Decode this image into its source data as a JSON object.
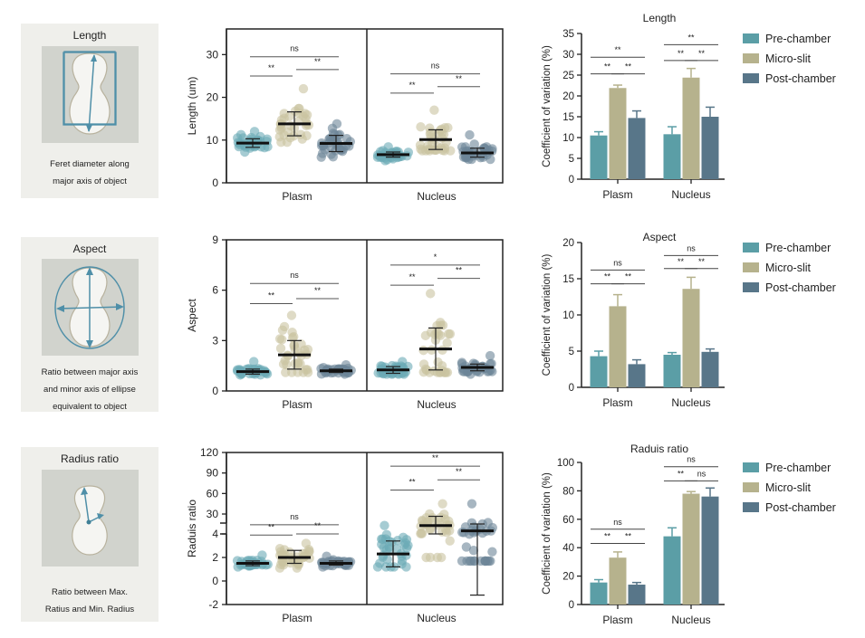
{
  "colors": {
    "pre_chamber": "#5b9ea6",
    "micro_slit": "#b6b28d",
    "post_chamber": "#587689",
    "dot_pre": "#6aaab5",
    "dot_micro": "#c9c3a0",
    "dot_post": "#6c8597"
  },
  "cards": [
    {
      "title": "Length",
      "desc": [
        "Feret diameter along",
        "major axis of object"
      ],
      "icon": "feret-diameter-icon"
    },
    {
      "title": "Aspect",
      "desc": [
        "Ratio between major axis",
        "and minor axis of ellipse",
        "equivalent to object"
      ],
      "icon": "ellipse-axes-icon"
    },
    {
      "title": "Radius ratio",
      "desc": [
        "Ratio between Max.",
        "Ratius and Min. Radius"
      ],
      "icon": "radius-ratio-icon"
    }
  ],
  "legend": [
    "Pre-chamber",
    "Micro-slit",
    "Post-chamber"
  ],
  "chart_data": [
    {
      "type": "scatter",
      "name": "length-scatter",
      "ylabel": "Length (um)",
      "ylim": [
        0,
        36
      ],
      "yticks": [
        0,
        10,
        20,
        30
      ],
      "categories": [
        "Plasm",
        "Nucleus"
      ],
      "groups": [
        "Pre-chamber",
        "Micro-slit",
        "Post-chamber"
      ],
      "series": [
        {
          "category": "Plasm",
          "group": "Pre-chamber",
          "mean": 9.3,
          "sd_low": 8.3,
          "sd_high": 10.3,
          "min": 7.2,
          "max": 12.0
        },
        {
          "category": "Plasm",
          "group": "Micro-slit",
          "mean": 13.8,
          "sd_low": 11.0,
          "sd_high": 16.6,
          "min": 9.5,
          "max": 22.0
        },
        {
          "category": "Plasm",
          "group": "Post-chamber",
          "mean": 9.2,
          "sd_low": 7.3,
          "sd_high": 11.1,
          "min": 6.0,
          "max": 13.8
        },
        {
          "category": "Nucleus",
          "group": "Pre-chamber",
          "mean": 6.6,
          "sd_low": 6.0,
          "sd_high": 7.2,
          "min": 5.2,
          "max": 8.4
        },
        {
          "category": "Nucleus",
          "group": "Micro-slit",
          "mean": 10.1,
          "sd_low": 7.8,
          "sd_high": 12.4,
          "min": 7.5,
          "max": 17.0
        },
        {
          "category": "Nucleus",
          "group": "Post-chamber",
          "mean": 7.0,
          "sd_low": 6.0,
          "sd_high": 8.1,
          "min": 5.5,
          "max": 11.2
        }
      ],
      "annotations": [
        {
          "category": "Plasm",
          "from": 0,
          "to": 2,
          "y": 29.5,
          "label": "ns"
        },
        {
          "category": "Plasm",
          "from": 0,
          "to": 1,
          "y": 25,
          "label": "**"
        },
        {
          "category": "Plasm",
          "from": 1,
          "to": 2,
          "y": 26.5,
          "label": "**"
        },
        {
          "category": "Nucleus",
          "from": 0,
          "to": 2,
          "y": 25.5,
          "label": "ns"
        },
        {
          "category": "Nucleus",
          "from": 0,
          "to": 1,
          "y": 21,
          "label": "**"
        },
        {
          "category": "Nucleus",
          "from": 1,
          "to": 2,
          "y": 22.5,
          "label": "**"
        }
      ]
    },
    {
      "type": "scatter",
      "name": "aspect-scatter",
      "ylabel": "Aspect",
      "ylim": [
        0,
        9
      ],
      "yticks": [
        0,
        3,
        6,
        9
      ],
      "categories": [
        "Plasm",
        "Nucleus"
      ],
      "groups": [
        "Pre-chamber",
        "Micro-slit",
        "Post-chamber"
      ],
      "series": [
        {
          "category": "Plasm",
          "group": "Pre-chamber",
          "mean": 1.15,
          "sd_low": 1.0,
          "sd_high": 1.3,
          "min": 0.95,
          "max": 1.75
        },
        {
          "category": "Plasm",
          "group": "Micro-slit",
          "mean": 2.15,
          "sd_low": 1.3,
          "sd_high": 3.0,
          "min": 1.1,
          "max": 4.5
        },
        {
          "category": "Plasm",
          "group": "Post-chamber",
          "mean": 1.2,
          "sd_low": 1.1,
          "sd_high": 1.3,
          "min": 1.0,
          "max": 1.55
        },
        {
          "category": "Nucleus",
          "group": "Pre-chamber",
          "mean": 1.25,
          "sd_low": 1.05,
          "sd_high": 1.45,
          "min": 1.0,
          "max": 1.75
        },
        {
          "category": "Nucleus",
          "group": "Micro-slit",
          "mean": 2.5,
          "sd_low": 1.25,
          "sd_high": 3.75,
          "min": 1.1,
          "max": 5.8
        },
        {
          "category": "Nucleus",
          "group": "Post-chamber",
          "mean": 1.4,
          "sd_low": 1.2,
          "sd_high": 1.6,
          "min": 1.0,
          "max": 2.1
        }
      ],
      "annotations": [
        {
          "category": "Plasm",
          "from": 0,
          "to": 2,
          "y": 6.4,
          "label": "ns"
        },
        {
          "category": "Plasm",
          "from": 0,
          "to": 1,
          "y": 5.2,
          "label": "**"
        },
        {
          "category": "Plasm",
          "from": 1,
          "to": 2,
          "y": 5.5,
          "label": "**"
        },
        {
          "category": "Nucleus",
          "from": 0,
          "to": 2,
          "y": 7.5,
          "label": "*"
        },
        {
          "category": "Nucleus",
          "from": 0,
          "to": 1,
          "y": 6.3,
          "label": "**"
        },
        {
          "category": "Nucleus",
          "from": 1,
          "to": 2,
          "y": 6.7,
          "label": "**"
        }
      ]
    },
    {
      "type": "scatter",
      "name": "radius-ratio-scatter",
      "ylabel": "Raduis ratio",
      "y_axis_break": true,
      "lower_ylim": [
        -2,
        4
      ],
      "upper_ylim": [
        0,
        120
      ],
      "yticks_lower": [
        -2,
        0,
        2,
        4
      ],
      "yticks_upper": [
        30,
        60,
        90,
        120
      ],
      "categories": [
        "Plasm",
        "Nucleus"
      ],
      "groups": [
        "Pre-chamber",
        "Micro-slit",
        "Post-chamber"
      ],
      "series": [
        {
          "category": "Plasm",
          "group": "Pre-chamber",
          "mean": 1.5,
          "sd_low": 1.3,
          "sd_high": 1.7,
          "min": 1.2,
          "max": 2.2
        },
        {
          "category": "Plasm",
          "group": "Micro-slit",
          "mean": 2.0,
          "sd_low": 1.5,
          "sd_high": 2.6,
          "min": 1.1,
          "max": 3.2
        },
        {
          "category": "Plasm",
          "group": "Post-chamber",
          "mean": 1.5,
          "sd_low": 1.35,
          "sd_high": 1.7,
          "min": 1.2,
          "max": 2.1
        },
        {
          "category": "Nucleus",
          "group": "Pre-chamber",
          "mean": 2.3,
          "sd_low": 1.2,
          "sd_high": 3.4,
          "min": 1.2,
          "max": 15
        },
        {
          "category": "Nucleus",
          "group": "Micro-slit",
          "mean": 15,
          "sd_low": 4,
          "sd_high": 27,
          "min": 2.0,
          "max": 45
        },
        {
          "category": "Nucleus",
          "group": "Post-chamber",
          "mean": 8,
          "sd_low": -1.2,
          "sd_high": 17,
          "min": 1.7,
          "max": 45
        }
      ],
      "annotations": [
        {
          "category": "Plasm",
          "from": 0,
          "to": 2,
          "y": 16,
          "label": "ns"
        },
        {
          "category": "Plasm",
          "from": 0,
          "to": 1,
          "y": 3.9,
          "label": "**"
        },
        {
          "category": "Plasm",
          "from": 1,
          "to": 2,
          "y": 4.0,
          "label": "**"
        },
        {
          "category": "Nucleus",
          "from": 0,
          "to": 2,
          "y": 100,
          "label": "**"
        },
        {
          "category": "Nucleus",
          "from": 0,
          "to": 1,
          "y": 65,
          "label": "**"
        },
        {
          "category": "Nucleus",
          "from": 1,
          "to": 2,
          "y": 80,
          "label": "**"
        }
      ]
    },
    {
      "type": "bar",
      "name": "length-cv-bar",
      "title": "Length",
      "ylabel": "Coefficient of variation (%)",
      "ylim": [
        0,
        35
      ],
      "yticks": [
        0,
        5,
        10,
        15,
        20,
        25,
        30,
        35
      ],
      "categories": [
        "Plasm",
        "Nucleus"
      ],
      "series": [
        {
          "name": "Pre-chamber",
          "values": [
            10.5,
            10.8
          ],
          "errors": [
            0.9,
            1.8
          ]
        },
        {
          "name": "Micro-slit",
          "values": [
            21.9,
            24.4
          ],
          "errors": [
            0.7,
            2.2
          ]
        },
        {
          "name": "Post-chamber",
          "values": [
            14.7,
            15.0
          ],
          "errors": [
            1.7,
            2.3
          ]
        }
      ],
      "annotations": [
        {
          "category": "Plasm",
          "from": 0,
          "to": 2,
          "y": 29.3,
          "label": "**"
        },
        {
          "category": "Plasm",
          "from": 0,
          "to": 1,
          "y": 25.3,
          "label": "**"
        },
        {
          "category": "Plasm",
          "from": 1,
          "to": 2,
          "y": 25.3,
          "label": "**"
        },
        {
          "category": "Nucleus",
          "from": 0,
          "to": 2,
          "y": 32.3,
          "label": "**"
        },
        {
          "category": "Nucleus",
          "from": 0,
          "to": 1,
          "y": 28.5,
          "label": "**"
        },
        {
          "category": "Nucleus",
          "from": 1,
          "to": 2,
          "y": 28.5,
          "label": "**"
        }
      ]
    },
    {
      "type": "bar",
      "name": "aspect-cv-bar",
      "title": "Aspect",
      "ylabel": "Coefficient of variation (%)",
      "ylim": [
        0,
        20
      ],
      "yticks": [
        0,
        5,
        10,
        15,
        20
      ],
      "categories": [
        "Plasm",
        "Nucleus"
      ],
      "series": [
        {
          "name": "Pre-chamber",
          "values": [
            4.3,
            4.5
          ],
          "errors": [
            0.7,
            0.3
          ]
        },
        {
          "name": "Micro-slit",
          "values": [
            11.2,
            13.6
          ],
          "errors": [
            1.6,
            1.6
          ]
        },
        {
          "name": "Post-chamber",
          "values": [
            3.2,
            4.9
          ],
          "errors": [
            0.6,
            0.4
          ]
        }
      ],
      "annotations": [
        {
          "category": "Plasm",
          "from": 0,
          "to": 2,
          "y": 16.2,
          "label": "ns"
        },
        {
          "category": "Plasm",
          "from": 0,
          "to": 1,
          "y": 14.3,
          "label": "**"
        },
        {
          "category": "Plasm",
          "from": 1,
          "to": 2,
          "y": 14.3,
          "label": "**"
        },
        {
          "category": "Nucleus",
          "from": 0,
          "to": 2,
          "y": 18.2,
          "label": "ns"
        },
        {
          "category": "Nucleus",
          "from": 0,
          "to": 1,
          "y": 16.4,
          "label": "**"
        },
        {
          "category": "Nucleus",
          "from": 1,
          "to": 2,
          "y": 16.4,
          "label": "**"
        }
      ]
    },
    {
      "type": "bar",
      "name": "radius-cv-bar",
      "title": "Raduis ratio",
      "ylabel": "Coefficient of variation (%)",
      "ylim": [
        0,
        100
      ],
      "yticks": [
        0,
        20,
        40,
        60,
        80,
        100
      ],
      "categories": [
        "Plasm",
        "Nucleus"
      ],
      "series": [
        {
          "name": "Pre-chamber",
          "values": [
            15.5,
            48
          ],
          "errors": [
            2,
            6
          ]
        },
        {
          "name": "Micro-slit",
          "values": [
            33,
            78
          ],
          "errors": [
            4,
            1.5
          ]
        },
        {
          "name": "Post-chamber",
          "values": [
            14,
            76
          ],
          "errors": [
            1.5,
            6
          ]
        }
      ],
      "annotations": [
        {
          "category": "Plasm",
          "from": 0,
          "to": 2,
          "y": 53,
          "label": "ns"
        },
        {
          "category": "Plasm",
          "from": 0,
          "to": 1,
          "y": 43,
          "label": "**"
        },
        {
          "category": "Plasm",
          "from": 1,
          "to": 2,
          "y": 43,
          "label": "**"
        },
        {
          "category": "Nucleus",
          "from": 0,
          "to": 2,
          "y": 97,
          "label": "ns"
        },
        {
          "category": "Nucleus",
          "from": 0,
          "to": 1,
          "y": 87,
          "label": "**"
        },
        {
          "category": "Nucleus",
          "from": 1,
          "to": 2,
          "y": 87,
          "label": "ns"
        }
      ]
    }
  ]
}
